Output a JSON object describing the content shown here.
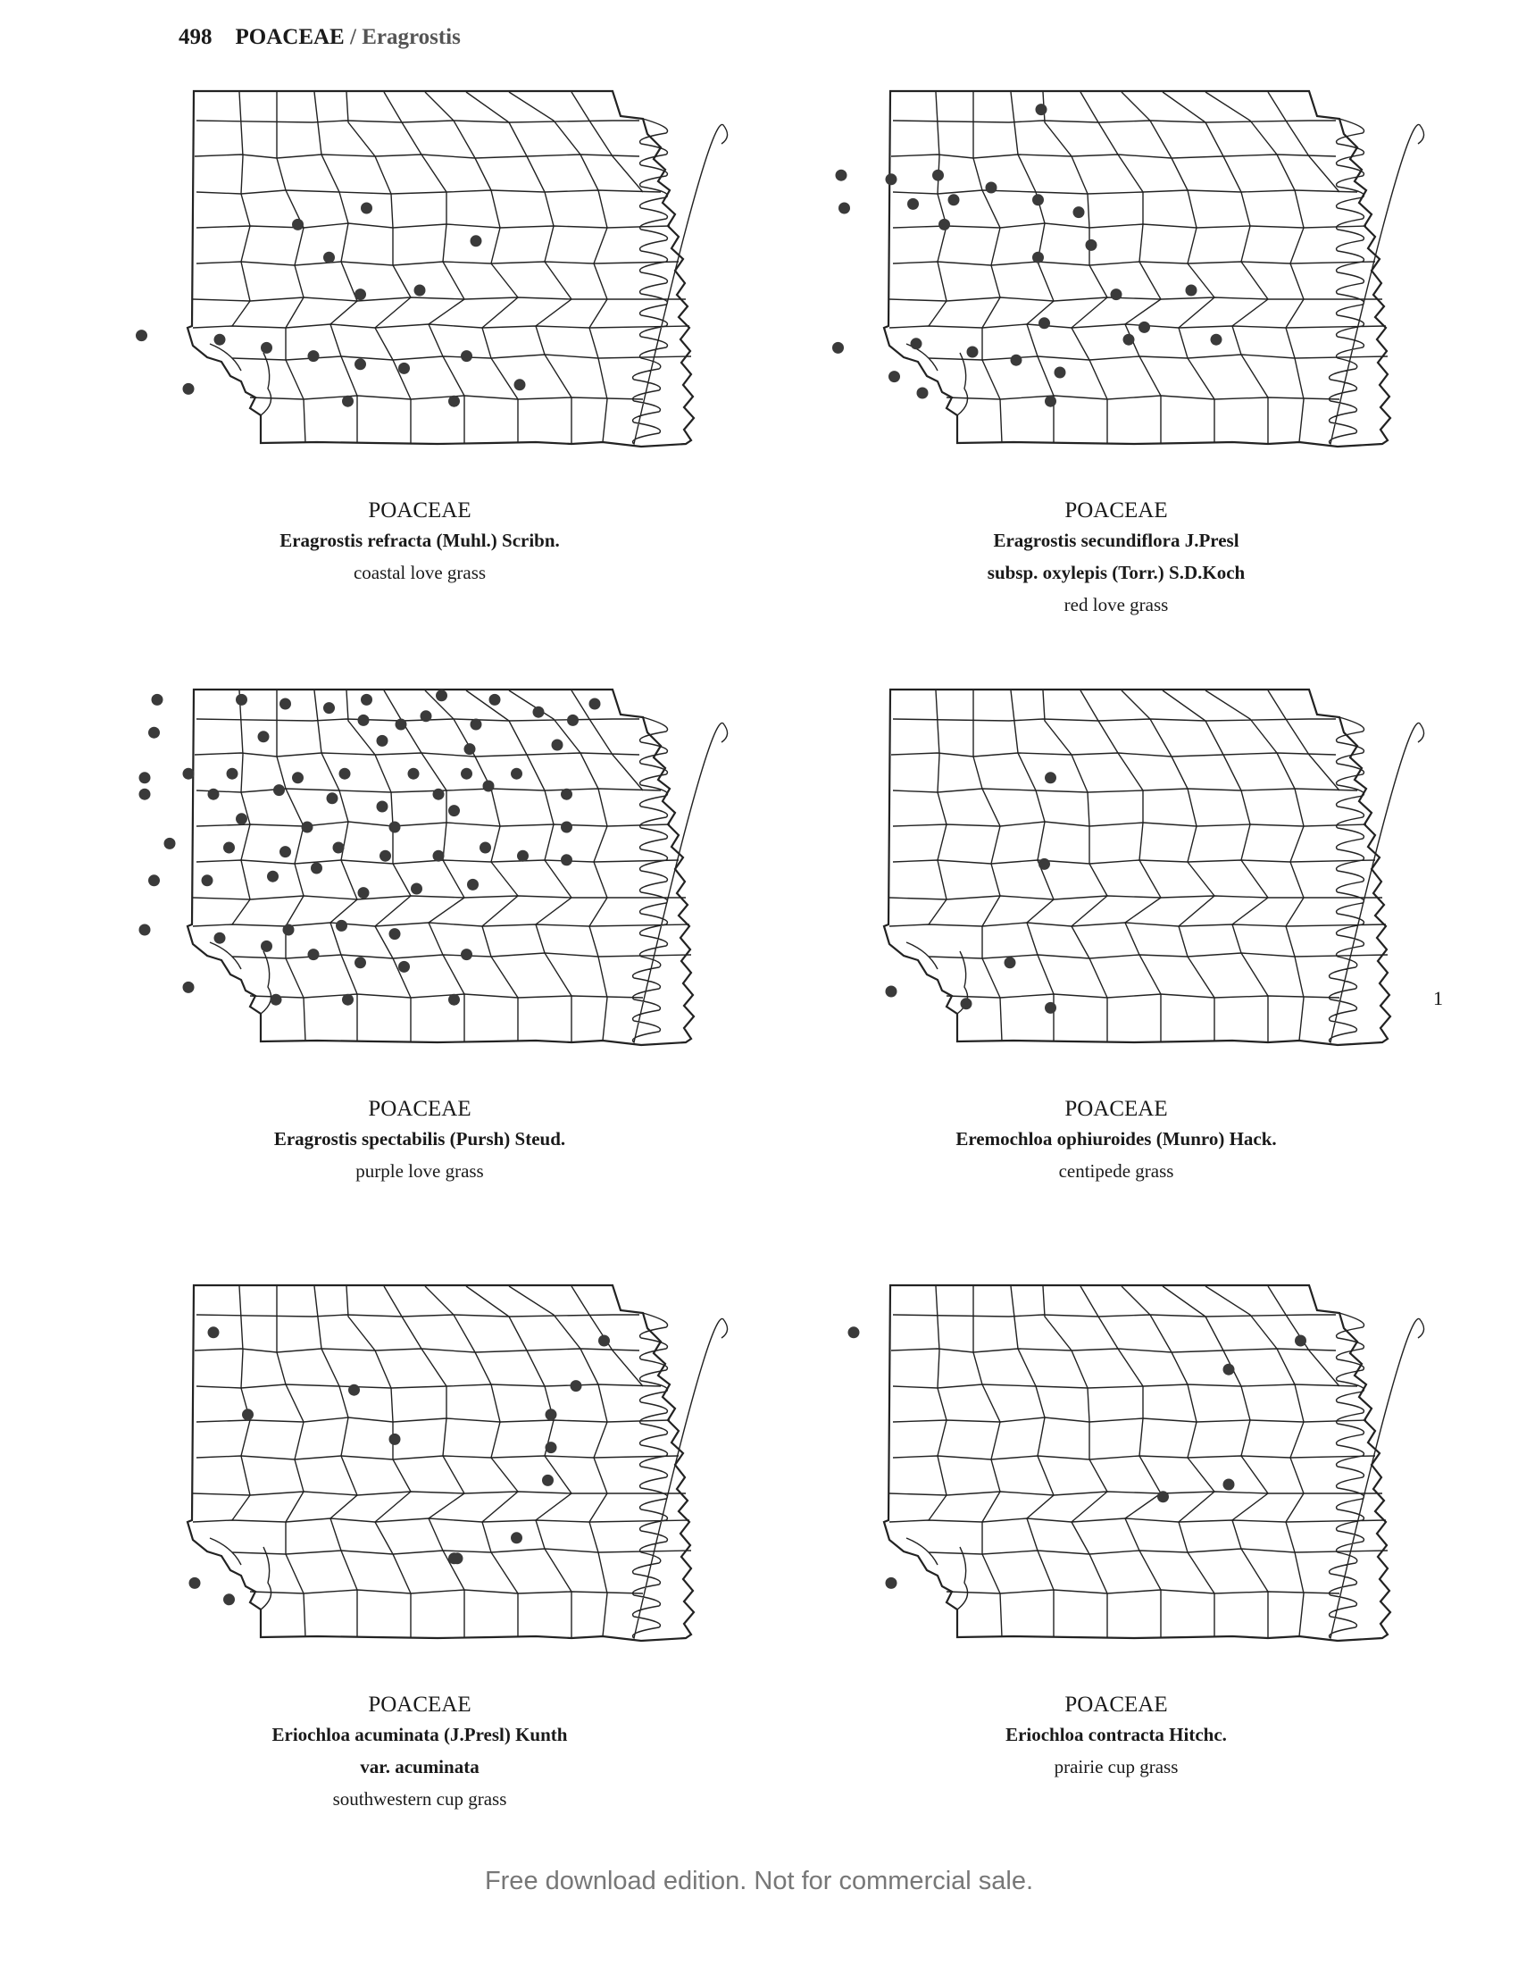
{
  "header": {
    "page_number": "498",
    "family": "POACEAE",
    "separator": " / ",
    "genus": "Eragrostis"
  },
  "footer": "Free download edition. Not for commercial sale.",
  "maps": [
    {
      "family": "POACEAE",
      "name_lines": [
        "Eragrostis refracta (Muhl.) Scribn."
      ],
      "common_name": "coastal love grass",
      "occurrence_count": 16,
      "annotation": ""
    },
    {
      "family": "POACEAE",
      "name_lines": [
        "Eragrostis secundiflora J.Presl",
        "subsp. oxylepis (Torr.) S.D.Koch"
      ],
      "common_name": "red love grass",
      "occurrence_count": 28,
      "annotation": ""
    },
    {
      "family": "POACEAE",
      "name_lines": [
        "Eragrostis spectabilis (Pursh) Steud."
      ],
      "common_name": "purple love grass",
      "occurrence_count": 64,
      "annotation": ""
    },
    {
      "family": "POACEAE",
      "name_lines": [
        "Eremochloa ophiuroides (Munro) Hack."
      ],
      "common_name": "centipede grass",
      "occurrence_count": 6,
      "annotation": "1"
    },
    {
      "family": "POACEAE",
      "name_lines": [
        "Eriochloa acuminata (J.Presl) Kunth",
        "var. acuminata"
      ],
      "common_name": "southwestern cup grass",
      "occurrence_count": 14,
      "annotation": ""
    },
    {
      "family": "POACEAE",
      "name_lines": [
        "Eriochloa contracta Hitchc."
      ],
      "common_name": "prairie cup grass",
      "occurrence_count": 6,
      "annotation": ""
    }
  ]
}
